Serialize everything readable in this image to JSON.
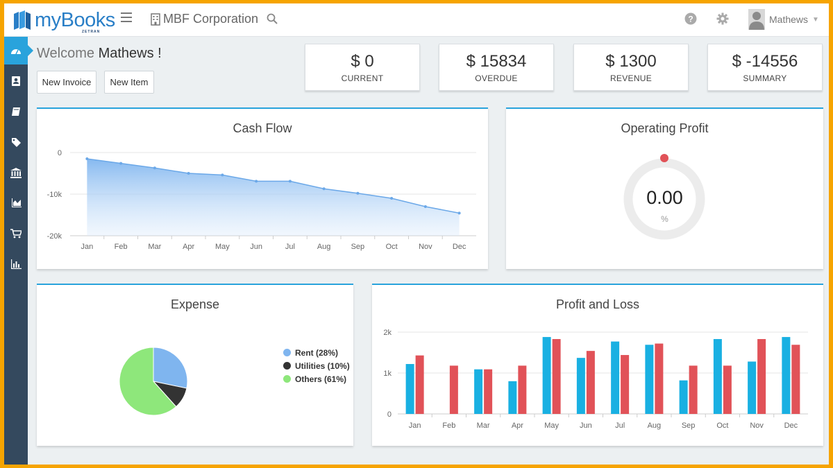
{
  "header": {
    "logo_text": "myBooks",
    "logo_sub": "ZETRAN",
    "organization": "MBF Corporation",
    "user_name": "Mathews"
  },
  "welcome": {
    "prefix": "Welcome",
    "name": "Mathews !"
  },
  "actions": {
    "new_invoice": "New Invoice",
    "new_item": "New Item"
  },
  "stats": [
    {
      "value": "$ 0",
      "label": "CURRENT"
    },
    {
      "value": "$ 15834",
      "label": "OVERDUE"
    },
    {
      "value": "$ 1300",
      "label": "REVENUE"
    },
    {
      "value": "$ -14556",
      "label": "SUMMARY"
    }
  ],
  "sidebar": {
    "icons": [
      "dashboard-icon",
      "contacts-icon",
      "books-icon",
      "tags-icon",
      "bank-icon",
      "reports-icon",
      "cart-icon",
      "bar-chart-icon"
    ]
  },
  "colors": {
    "accent": "#29a3dc",
    "sidebar": "#34495e",
    "bar_blue": "#19b0e2",
    "bar_red": "#e15258",
    "pie_rent": "#7fb5ef",
    "pie_utilities": "#333333",
    "pie_others": "#8ee77b"
  },
  "operating_profit": {
    "title": "Operating Profit",
    "value": "0.00",
    "unit": "%"
  },
  "chart_data": [
    {
      "type": "area",
      "title": "Cash Flow",
      "categories": [
        "Jan",
        "Feb",
        "Mar",
        "Apr",
        "May",
        "Jun",
        "Jul",
        "Aug",
        "Sep",
        "Oct",
        "Nov",
        "Dec"
      ],
      "values": [
        -1500,
        -2600,
        -3700,
        -5000,
        -5400,
        -6900,
        -6900,
        -8700,
        -9800,
        -11000,
        -13000,
        -14556
      ],
      "ylim": [
        -20000,
        0
      ],
      "yticks": [
        {
          "value": 0,
          "label": "0"
        },
        {
          "value": -10000,
          "label": "-10k"
        },
        {
          "value": -20000,
          "label": "-20k"
        }
      ],
      "grid": true
    },
    {
      "type": "pie",
      "title": "Expense",
      "legend_position": "right",
      "slices": [
        {
          "label": "Rent (28%)",
          "value": 28,
          "color": "#7fb5ef"
        },
        {
          "label": "Utilities (10%)",
          "value": 10,
          "color": "#333333"
        },
        {
          "label": "Others (61%)",
          "value": 61,
          "color": "#8ee77b"
        }
      ]
    },
    {
      "type": "bar",
      "title": "Profit and Loss",
      "categories": [
        "Jan",
        "Feb",
        "Mar",
        "Apr",
        "May",
        "Jun",
        "Jul",
        "Aug",
        "Sep",
        "Oct",
        "Nov",
        "Dec"
      ],
      "series": [
        {
          "values": [
            1220,
            0,
            1090,
            800,
            1880,
            1370,
            1770,
            1690,
            820,
            1830,
            1280,
            1880
          ],
          "color": "#19b0e2"
        },
        {
          "values": [
            1430,
            1180,
            1090,
            1180,
            1830,
            1540,
            1440,
            1720,
            1180,
            1180,
            1830,
            1690
          ],
          "color": "#e15258"
        }
      ],
      "ylim": [
        0,
        2000
      ],
      "yticks": [
        {
          "value": 0,
          "label": "0"
        },
        {
          "value": 1000,
          "label": "1k"
        },
        {
          "value": 2000,
          "label": "2k"
        }
      ],
      "grid": true
    }
  ]
}
